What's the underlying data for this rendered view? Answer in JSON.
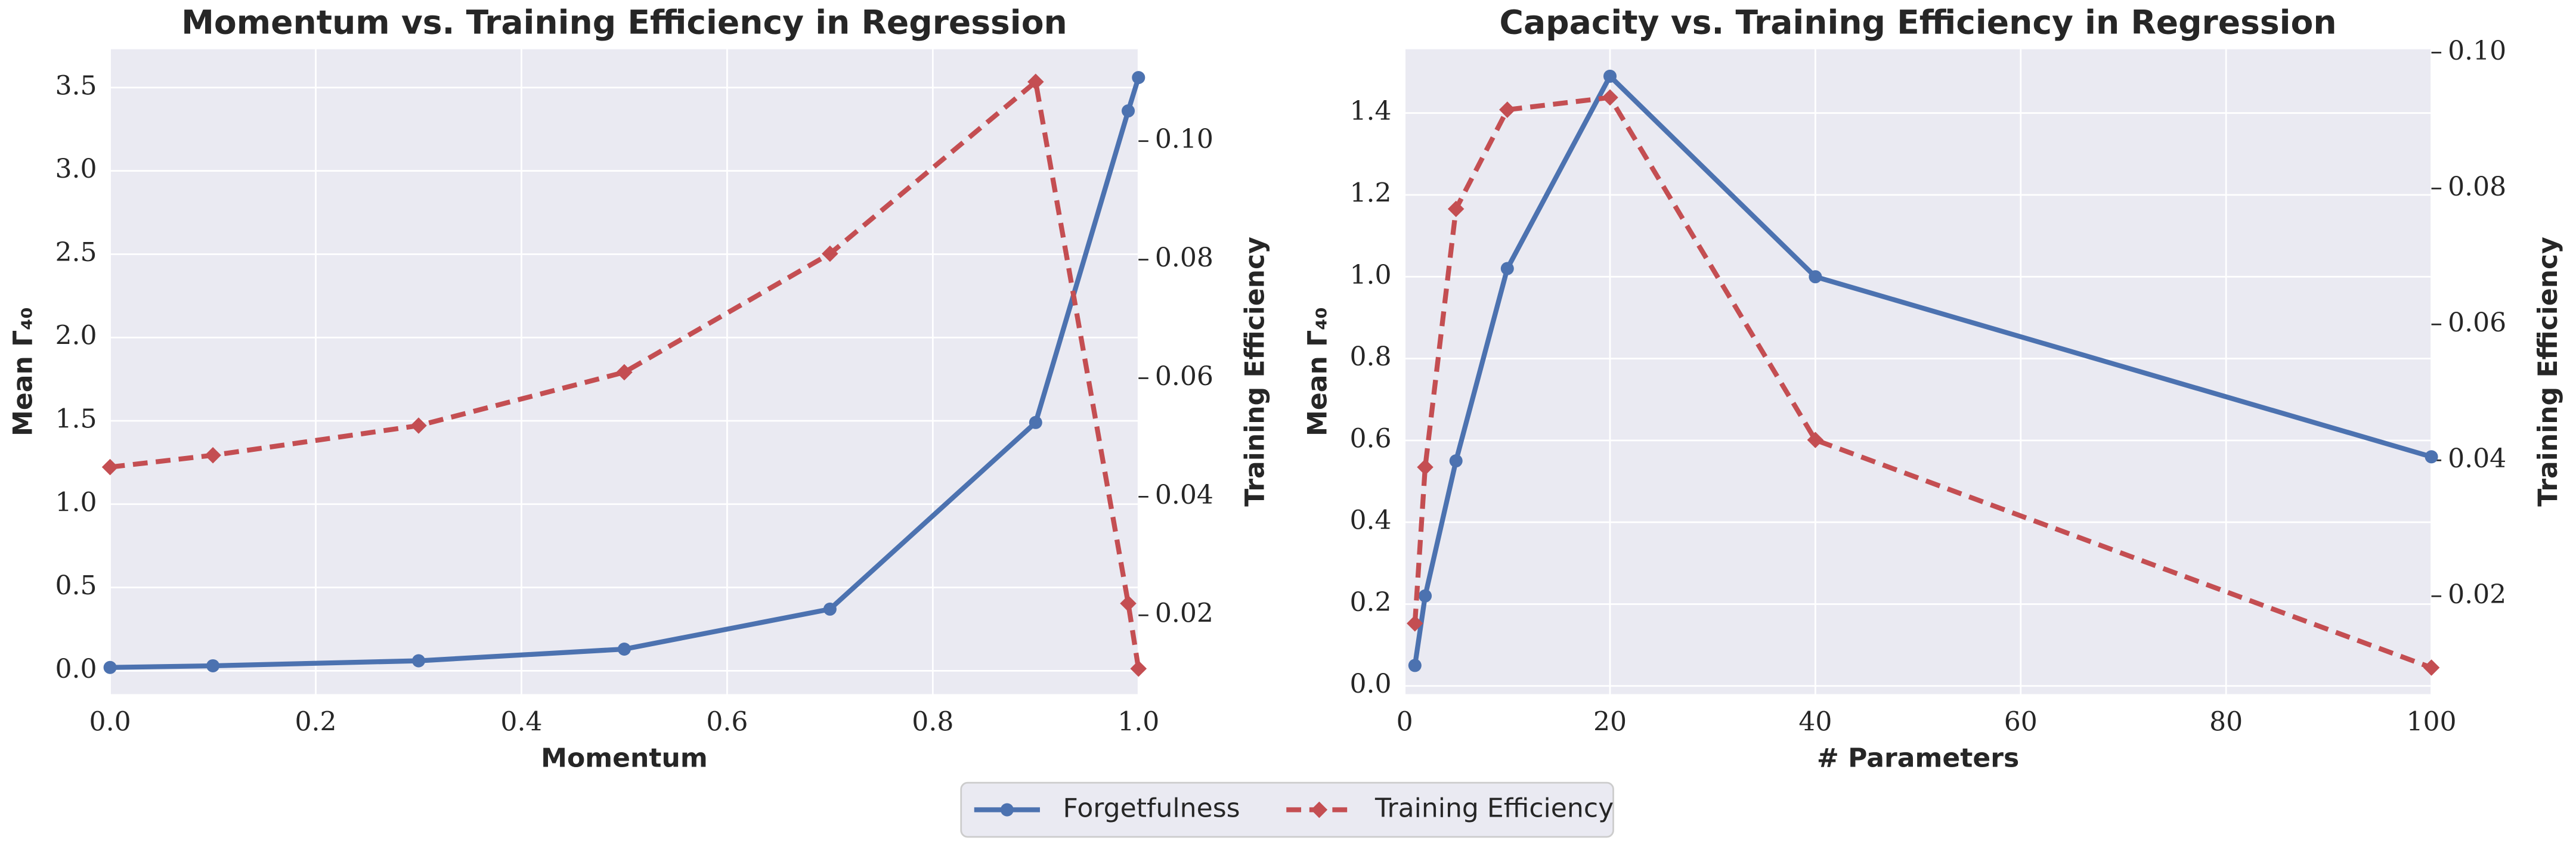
{
  "chart_data": [
    {
      "type": "line",
      "title": "Momentum vs. Training Efficiency in Regression",
      "xlabel": "Momentum",
      "ylabel": "Mean Γ₄₀",
      "y2label": "Training Efficiency",
      "x": [
        0,
        0.1,
        0.3,
        0.5,
        0.7,
        0.9,
        0.99,
        1
      ],
      "series": [
        {
          "name": "Forgetfulness",
          "color": "#4c72b0",
          "marker": "circle",
          "values": [
            0.02,
            0.03,
            0.06,
            0.13,
            0.37,
            1.49,
            3.36,
            3.56
          ]
        },
        {
          "name": "Training Efficiency",
          "color": "#c44e52",
          "marker": "diamond",
          "dashed": true,
          "axis": "y2",
          "values": [
            0.045,
            0.047,
            0.052,
            0.061,
            0.081,
            0.11,
            0.022,
            0.011
          ]
        }
      ],
      "xlim": [
        0,
        1
      ],
      "xticks": [
        {
          "value": 0,
          "label": "0.0"
        },
        0.2,
        0.4,
        0.6,
        0.8,
        {
          "value": 1,
          "label": "1.0"
        }
      ],
      "ylim": [
        -0.14,
        3.73
      ],
      "yticks": [
        {
          "value": 0,
          "label": "0.0"
        },
        0.5,
        {
          "value": 1,
          "label": "1.0"
        },
        1.5,
        {
          "value": 2,
          "label": "2.0"
        },
        2.5,
        {
          "value": 3,
          "label": "3.0"
        },
        3.5
      ],
      "y2lim": [
        0.0067,
        0.1155
      ],
      "y2ticks": [
        0.02,
        0.04,
        0.06,
        0.08,
        {
          "value": 0.1,
          "label": "0.10"
        }
      ],
      "grid": true
    },
    {
      "type": "line",
      "title": "Capacity vs. Training Efficiency in Regression",
      "xlabel": "# Parameters",
      "ylabel": "Mean Γ₄₀",
      "y2label": "Training Efficiency",
      "x": [
        1,
        2,
        5,
        10,
        20,
        40,
        100
      ],
      "series": [
        {
          "name": "Forgetfulness",
          "color": "#4c72b0",
          "marker": "circle",
          "values": [
            0.05,
            0.22,
            0.55,
            1.02,
            1.49,
            1.0,
            0.56
          ]
        },
        {
          "name": "Training Efficiency",
          "color": "#c44e52",
          "marker": "diamond",
          "dashed": true,
          "axis": "y2",
          "values": [
            0.016,
            0.039,
            0.077,
            0.0916,
            0.0934,
            0.043,
            0.0095
          ]
        }
      ],
      "xlim": [
        0,
        100
      ],
      "xticks": [
        0,
        20,
        40,
        60,
        80,
        100
      ],
      "ylim": [
        -0.02,
        1.556
      ],
      "yticks": [
        {
          "value": 0,
          "label": "0.0"
        },
        0.2,
        0.4,
        0.6,
        0.8,
        {
          "value": 1,
          "label": "1.0"
        },
        1.2,
        1.4
      ],
      "y2lim": [
        0.0056,
        0.1005
      ],
      "y2ticks": [
        0.02,
        0.04,
        0.06,
        0.08,
        {
          "value": 0.1,
          "label": "0.10"
        }
      ],
      "grid": true
    }
  ],
  "legend": {
    "position": "lower center"
  }
}
